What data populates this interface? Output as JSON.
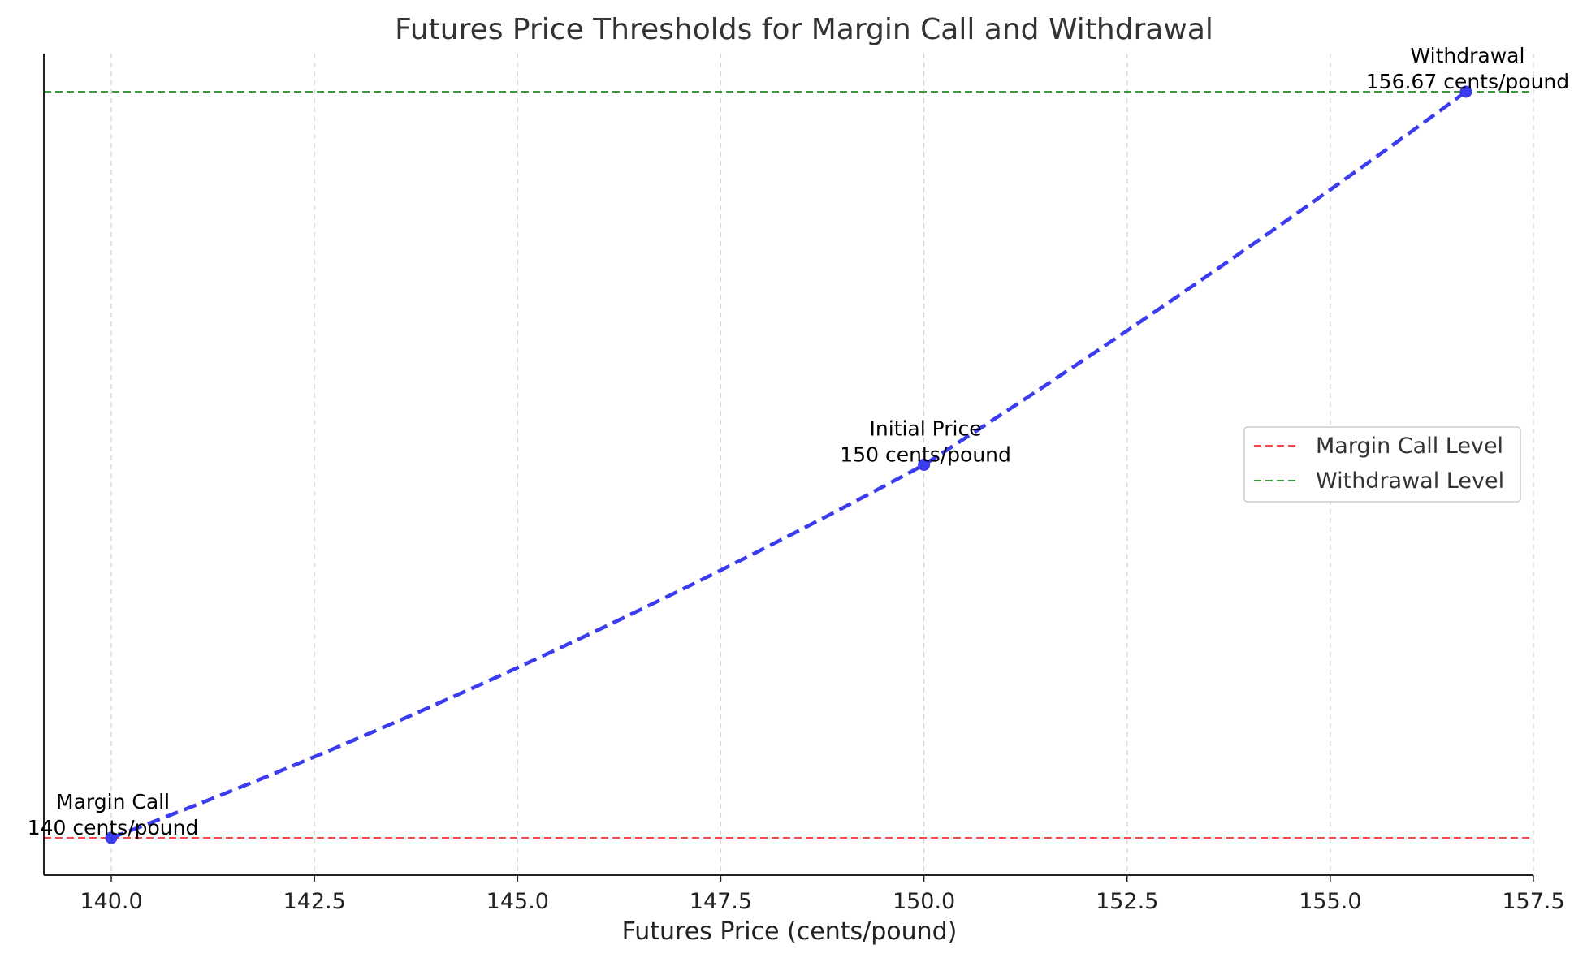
{
  "chart_data": {
    "type": "line",
    "title": "Futures Price Thresholds for Margin Call and Withdrawal",
    "xlabel": "Futures Price (cents/pound)",
    "ylabel": "",
    "xlim": [
      139.17,
      157.5
    ],
    "x_ticks": [
      "140.0",
      "142.5",
      "145.0",
      "147.5",
      "150.0",
      "152.5",
      "155.0",
      "157.5"
    ],
    "y_axis_ticks_shown": false,
    "grid": "vertical dashed",
    "series": [
      {
        "x": [
          140,
          150,
          156.67
        ],
        "relative_level": [
          0,
          0.5,
          1
        ],
        "color": "#3b3bf0",
        "style": "dashed"
      }
    ],
    "annotations": [
      {
        "x": 140,
        "line1": "Margin Call",
        "line2": "140 cents/pound"
      },
      {
        "x": 150,
        "line1": "Initial Price",
        "line2": "150 cents/pound"
      },
      {
        "x": 156.67,
        "line1": "Withdrawal",
        "line2": "156.67 cents/pound"
      }
    ],
    "reference_lines": [
      {
        "name": "Margin Call Level",
        "relative_level": 0,
        "color": "#ff4444",
        "style": "dashed"
      },
      {
        "name": "Withdrawal Level",
        "relative_level": 1,
        "color": "#3a9a3a",
        "style": "dashed"
      }
    ],
    "legend": {
      "position": "center-right",
      "entries": [
        "Margin Call Level",
        "Withdrawal Level"
      ]
    }
  }
}
